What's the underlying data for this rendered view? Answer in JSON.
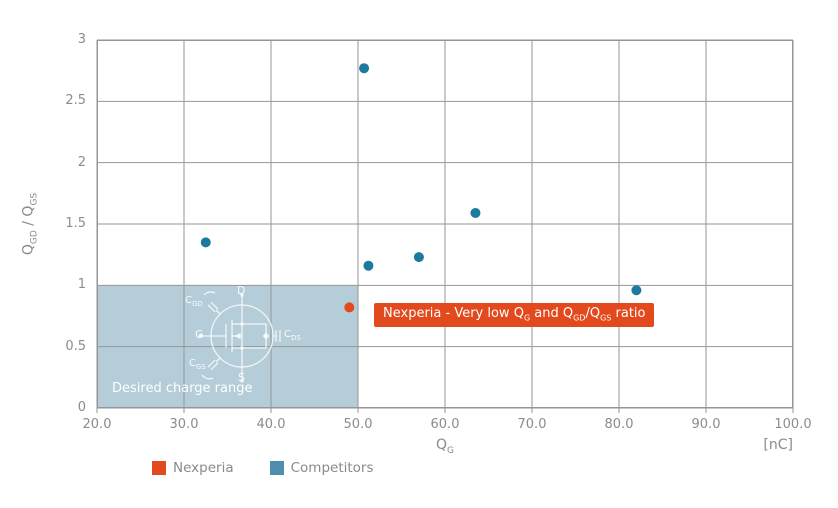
{
  "chart_data": {
    "type": "scatter",
    "title": "",
    "xlabel": {
      "text": "Q",
      "sub": "G"
    },
    "x_unit": "[nC]",
    "ylabel": {
      "p1": "Q",
      "s1": "GD",
      "sep": " / ",
      "p2": "Q",
      "s2": "GS"
    },
    "xlim": [
      20,
      100
    ],
    "ylim": [
      0,
      3
    ],
    "x_ticks": [
      20,
      30,
      40,
      50,
      60,
      70,
      80,
      90,
      100
    ],
    "x_tick_labels": [
      "20.0",
      "30.0",
      "40.0",
      "50.0",
      "60.0",
      "70.0",
      "80.0",
      "90.0",
      "100.0"
    ],
    "y_ticks": [
      0,
      0.5,
      1,
      1.5,
      2,
      2.5,
      3
    ],
    "y_tick_labels": [
      "0",
      "0.5",
      "1",
      "1.5",
      "2",
      "2.5",
      "3"
    ],
    "grid": true,
    "grid_color": "#969696",
    "axis_color": "#8c8c8c",
    "legend_position": "bottom-left",
    "series": [
      {
        "name": "Nexperia",
        "color": "#e2491d",
        "points": [
          [
            49,
            0.82
          ]
        ]
      },
      {
        "name": "Competitors",
        "color": "#1b7a9d",
        "points": [
          [
            32.5,
            1.35
          ],
          [
            50.7,
            2.77
          ],
          [
            51.2,
            1.16
          ],
          [
            57,
            1.23
          ],
          [
            63.5,
            1.59
          ],
          [
            82,
            0.96
          ]
        ]
      }
    ],
    "shaded_region": {
      "x": [
        20,
        50
      ],
      "y": [
        0,
        1
      ],
      "color": "#b4cdd9",
      "label": "Desired charge range"
    }
  },
  "annotation": {
    "p1": "Nexperia - Very low Q",
    "s1": "G",
    "p2": " and Q",
    "s2": "GD",
    "p3": "/Q",
    "s3": "GS",
    "p4": " ratio"
  },
  "legend": {
    "items": [
      {
        "label": "Nexperia",
        "color": "#e2491d"
      },
      {
        "label": "Competitors",
        "color": "#4d8fac"
      }
    ]
  },
  "diagram": {
    "d": "D",
    "s": "S",
    "g": "G",
    "cgd": {
      "c": "C",
      "sub": "GD"
    },
    "cds": {
      "c": "C",
      "sub": "DS"
    },
    "cgs": {
      "c": "C",
      "sub": "GS"
    }
  }
}
